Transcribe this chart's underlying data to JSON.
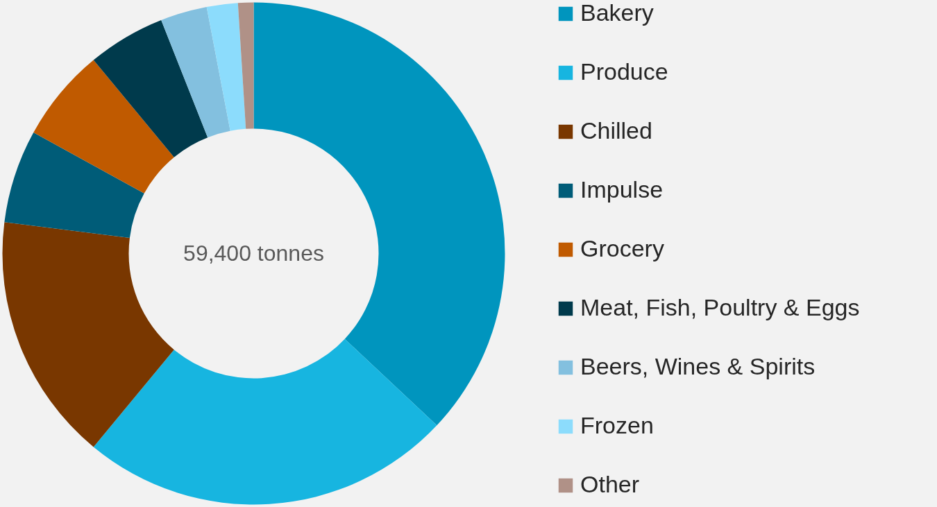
{
  "chart_data": {
    "type": "donut",
    "categories": [
      "Bakery",
      "Produce",
      "Chilled",
      "Impulse",
      "Grocery",
      "Meat, Fish, Poultry & Eggs",
      "Beers, Wines & Spirits",
      "Frozen",
      "Other"
    ],
    "values": [
      37,
      24,
      16,
      6,
      6,
      5,
      3,
      2,
      1
    ],
    "colors": [
      "#0095be",
      "#17b5e0",
      "#793700",
      "#005c78",
      "#c05a00",
      "#003a4c",
      "#83c0df",
      "#8cdcfc",
      "#b09187"
    ],
    "annotations": [
      "59,400 tonnes"
    ],
    "legend": "right"
  }
}
